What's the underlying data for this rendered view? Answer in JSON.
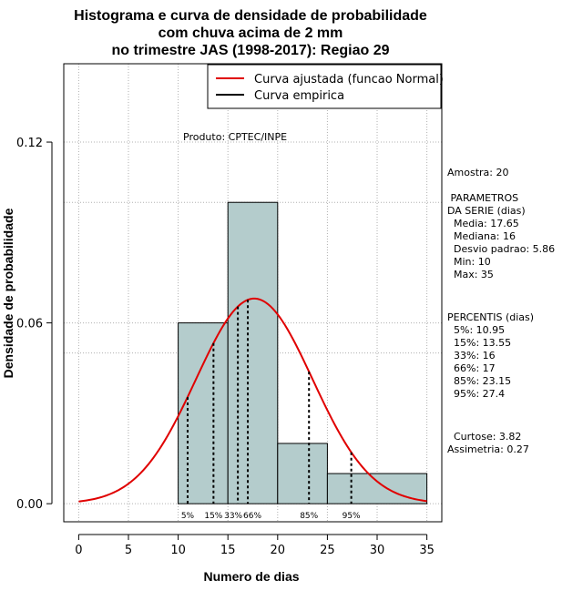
{
  "chart_data": {
    "type": "histogram",
    "title_lines": [
      "Histograma e curva de densidade de probabilidade",
      "com chuva acima de 2 mm",
      "no trimestre JAS (1998-2017): Regiao 29"
    ],
    "xlabel": "Numero de dias",
    "ylabel": "Densidade de probabilidade",
    "xlim": [
      -1.5,
      36.5
    ],
    "ylim": [
      -0.006,
      0.146
    ],
    "x_ticks": [
      "0",
      "5",
      "10",
      "15",
      "20",
      "25",
      "30",
      "35"
    ],
    "y_ticks": [
      "0.00",
      "0.06",
      "0.12"
    ],
    "bins": [
      {
        "start": 10,
        "end": 15,
        "density": 0.06
      },
      {
        "start": 15,
        "end": 20,
        "density": 0.1
      },
      {
        "start": 20,
        "end": 25,
        "density": 0.02
      },
      {
        "start": 25,
        "end": 35,
        "density": 0.01
      }
    ],
    "normal_fit": {
      "mean": 17.65,
      "sd": 5.86,
      "x_from": 0,
      "x_to": 35
    },
    "percentile_lines": [
      {
        "label": "5%",
        "value": 10.95
      },
      {
        "label": "15%",
        "value": 13.55
      },
      {
        "label": "33%",
        "value": 16
      },
      {
        "label": "66%",
        "value": 17
      },
      {
        "label": "85%",
        "value": 23.15
      },
      {
        "label": "95%",
        "value": 27.4
      }
    ],
    "legend": [
      {
        "label": "Curva ajustada (funcao Normal)",
        "color": "#e00000"
      },
      {
        "label": "Curva empirica",
        "color": "#000000"
      }
    ],
    "colors": {
      "bar_fill": "#b4cccc",
      "curve": "#e00000",
      "grid": "#b0b0b0"
    },
    "source": "Produto: CPTEC/INPE"
  },
  "stats_panel": {
    "sample": "Amostra: 20",
    "params_header": [
      " PARAMETROS",
      "DA SERIE (dias)"
    ],
    "params": [
      "  Media: 17.65",
      "  Mediana: 16",
      "  Desvio padrao: 5.86",
      "  Min: 10",
      "  Max: 35"
    ],
    "percentiles_header": "PERCENTIS (dias)",
    "percentiles": [
      "  5%: 10.95",
      "  15%: 13.55",
      "  33%: 16",
      "  66%: 17",
      "  85%: 23.15",
      "  95%: 27.4"
    ],
    "shape": [
      "  Curtose: 3.82",
      "Assimetria: 0.27"
    ]
  }
}
